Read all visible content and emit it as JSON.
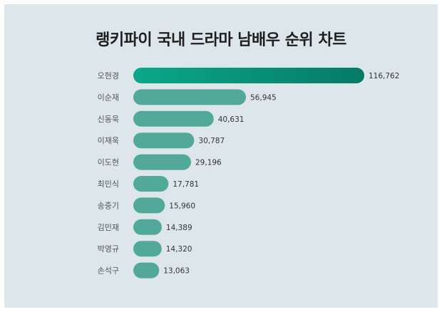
{
  "chart_data": {
    "type": "bar",
    "orientation": "horizontal",
    "title": "랭키파이 국내 드라마 남배우 순위 차트",
    "categories": [
      "오현경",
      "이순재",
      "신동욱",
      "이재욱",
      "이도현",
      "최민식",
      "송중기",
      "김민재",
      "박영규",
      "손석구"
    ],
    "values": [
      116762,
      56945,
      40631,
      30787,
      29196,
      17781,
      15960,
      14389,
      14320,
      13063
    ],
    "value_labels": [
      "116,762",
      "56,945",
      "40,631",
      "30,787",
      "29,196",
      "17,781",
      "15,960",
      "14,389",
      "14,320",
      "13,063"
    ],
    "xlabel": "",
    "ylabel": "",
    "grid": false,
    "legend": "none",
    "colors": {
      "top_bar_start": "#0aa88a",
      "top_bar_end": "#067a68",
      "bar": "#52a99a",
      "background": "#dde6ea"
    }
  }
}
